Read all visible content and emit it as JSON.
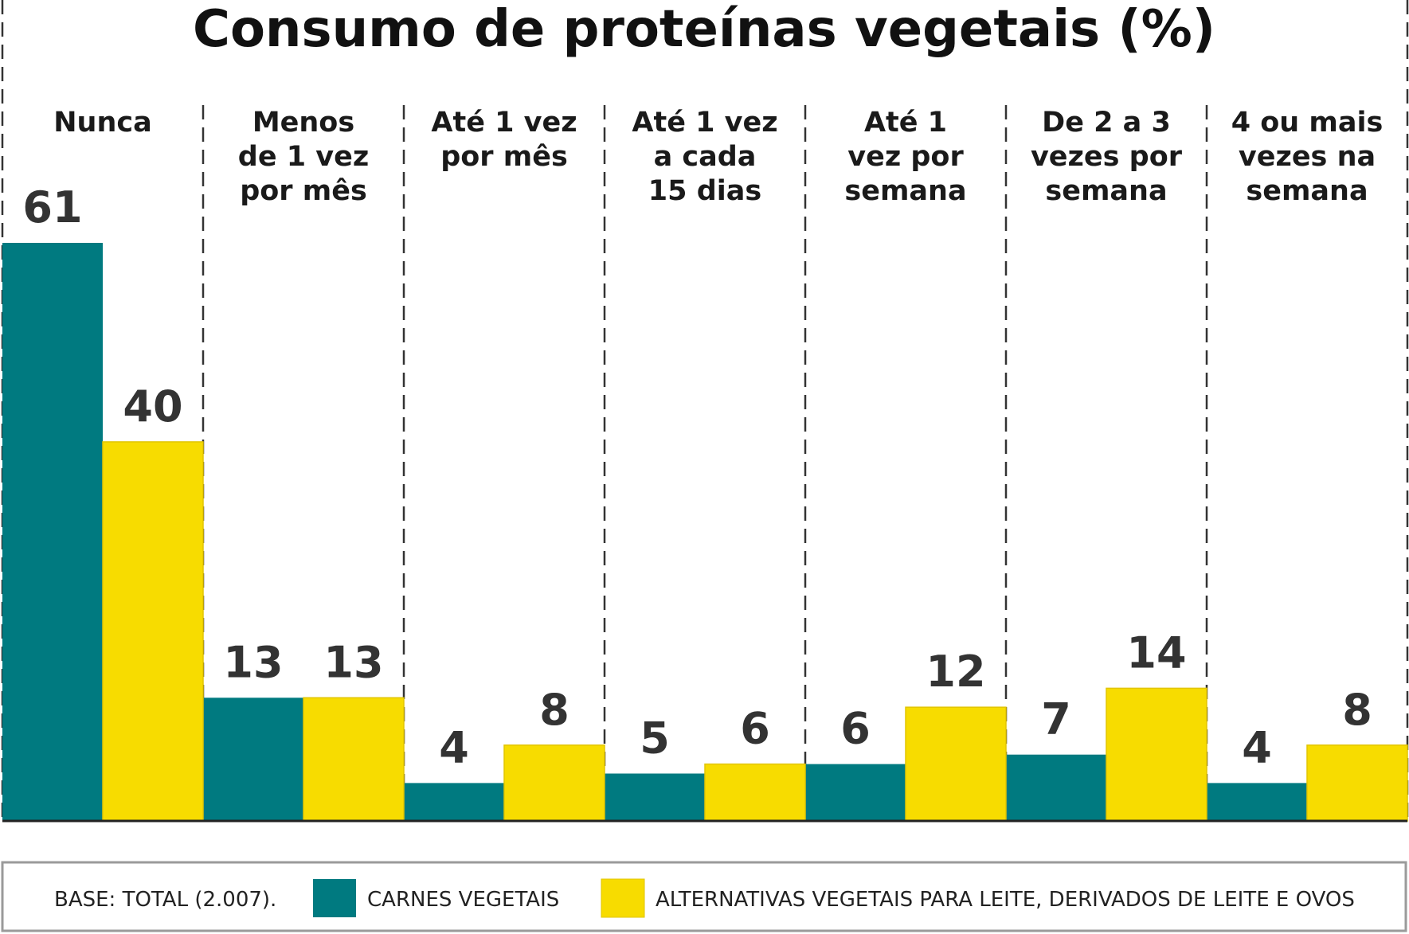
{
  "chart_data": {
    "type": "bar",
    "title": "Consumo de proteínas vegetais (%)",
    "categories": [
      [
        "Nunca"
      ],
      [
        "Menos",
        "de 1 vez",
        "por mês"
      ],
      [
        "Até 1 vez",
        "por mês"
      ],
      [
        "Até 1 vez",
        "a cada",
        "15 dias"
      ],
      [
        "Até 1",
        "vez por",
        "semana"
      ],
      [
        "De 2 a 3",
        "vezes por",
        "semana"
      ],
      [
        "4 ou mais",
        "vezes na",
        "semana"
      ]
    ],
    "series": [
      {
        "name": "CARNES VEGETAIS",
        "color": "#007a80",
        "values": [
          61,
          13,
          4,
          5,
          6,
          7,
          4
        ]
      },
      {
        "name": "ALTERNATIVAS VEGETAIS PARA LEITE, DERIVADOS DE LEITE E OVOS",
        "color": "#f7dc00",
        "values": [
          40,
          13,
          8,
          6,
          12,
          14,
          8
        ]
      }
    ],
    "xlabel": "",
    "ylabel": "",
    "ylim": [
      0,
      61
    ],
    "grid": false,
    "legend": "bottom",
    "base_note": "BASE: TOTAL (2.007)."
  }
}
